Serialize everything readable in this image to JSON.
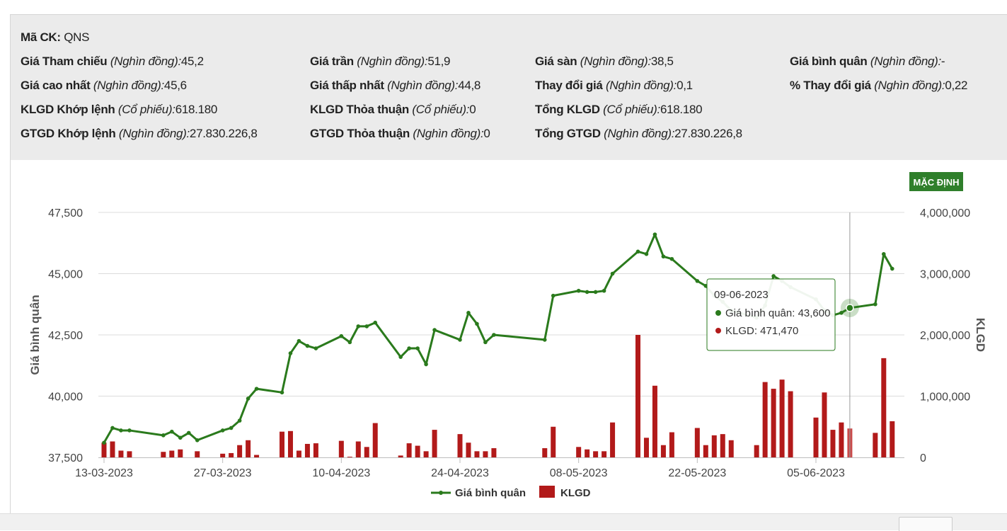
{
  "info": {
    "symbol_label": "Mã CK:",
    "symbol_value": "QNS",
    "rows": [
      [
        {
          "label": "Giá Tham chiếu",
          "unit": "(Nghìn đồng):",
          "value": "45,2"
        },
        {
          "label": "Giá trần",
          "unit": "(Nghìn đồng):",
          "value": "51,9"
        },
        {
          "label": "Giá sàn",
          "unit": "(Nghìn đồng):",
          "value": "38,5"
        },
        {
          "label": "Giá bình quân",
          "unit": "(Nghìn đồng):",
          "value": "-"
        }
      ],
      [
        {
          "label": "Giá cao nhất",
          "unit": "(Nghìn đồng):",
          "value": "45,6"
        },
        {
          "label": "Giá thấp nhất",
          "unit": "(Nghìn đồng):",
          "value": "44,8"
        },
        {
          "label": "Thay đổi giá",
          "unit": "(Nghìn đồng):",
          "value": "0,1"
        },
        {
          "label": "% Thay đổi giá",
          "unit": "(Nghìn đồng):",
          "value": "0,22"
        }
      ],
      [
        {
          "label": "KLGD Khớp lệnh",
          "unit": "(Cổ phiếu):",
          "value": "618.180"
        },
        {
          "label": "KLGD Thỏa thuận",
          "unit": "(Cổ phiếu):",
          "value": "0"
        },
        {
          "label": "Tổng KLGD",
          "unit": "(Cổ phiếu):",
          "value": "618.180"
        }
      ],
      [
        {
          "label": "GTGD Khớp lệnh",
          "unit": "(Nghìn đồng):",
          "value": "27.830.226,8"
        },
        {
          "label": "GTGD Thỏa thuận",
          "unit": "(Nghìn đồng):",
          "value": "0"
        },
        {
          "label": "Tổng GTGD",
          "unit": "(Nghìn đồng):",
          "value": "27.830.226,8"
        }
      ]
    ]
  },
  "button": {
    "label": "MẶC ĐỊNH"
  },
  "chart_data": {
    "type": "line",
    "x_ticks": [
      "13-03-2023",
      "27-03-2023",
      "10-04-2023",
      "24-04-2023",
      "08-05-2023",
      "22-05-2023",
      "05-06-2023"
    ],
    "y_left_ticks": [
      "37,500",
      "40,000",
      "42,500",
      "45,000",
      "47,500"
    ],
    "y_right_ticks": [
      "0",
      "1,000,000",
      "2,000,000",
      "3,000,000",
      "4,000,000"
    ],
    "ylabel": "Giá bình quân",
    "ylabel_right": "KLGD",
    "ylim": [
      37500,
      47500
    ],
    "ylim_right": [
      0,
      4000000
    ],
    "legend_position": "bottom",
    "grid": true,
    "series": [
      {
        "name": "Giá bình quân",
        "type": "line",
        "color": "#2a7a1c",
        "points": [
          [
            "2023-03-13",
            38100
          ],
          [
            "2023-03-14",
            38700
          ],
          [
            "2023-03-15",
            38600
          ],
          [
            "2023-03-16",
            38600
          ],
          [
            "2023-03-20",
            38400
          ],
          [
            "2023-03-21",
            38550
          ],
          [
            "2023-03-22",
            38300
          ],
          [
            "2023-03-23",
            38500
          ],
          [
            "2023-03-24",
            38200
          ],
          [
            "2023-03-27",
            38600
          ],
          [
            "2023-03-28",
            38700
          ],
          [
            "2023-03-29",
            39000
          ],
          [
            "2023-03-30",
            39900
          ],
          [
            "2023-03-31",
            40300
          ],
          [
            "2023-04-03",
            40150
          ],
          [
            "2023-04-04",
            41750
          ],
          [
            "2023-04-05",
            42250
          ],
          [
            "2023-04-06",
            42050
          ],
          [
            "2023-04-07",
            41950
          ],
          [
            "2023-04-10",
            42450
          ],
          [
            "2023-04-11",
            42200
          ],
          [
            "2023-04-12",
            42850
          ],
          [
            "2023-04-13",
            42850
          ],
          [
            "2023-04-14",
            43000
          ],
          [
            "2023-04-17",
            41600
          ],
          [
            "2023-04-18",
            41950
          ],
          [
            "2023-04-19",
            41950
          ],
          [
            "2023-04-20",
            41300
          ],
          [
            "2023-04-21",
            42700
          ],
          [
            "2023-04-24",
            42300
          ],
          [
            "2023-04-25",
            43400
          ],
          [
            "2023-04-26",
            42950
          ],
          [
            "2023-04-27",
            42200
          ],
          [
            "2023-04-28",
            42500
          ],
          [
            "2023-05-04",
            42300
          ],
          [
            "2023-05-05",
            44100
          ],
          [
            "2023-05-08",
            44300
          ],
          [
            "2023-05-09",
            44250
          ],
          [
            "2023-05-10",
            44250
          ],
          [
            "2023-05-11",
            44300
          ],
          [
            "2023-05-12",
            45000
          ],
          [
            "2023-05-15",
            45900
          ],
          [
            "2023-05-16",
            45800
          ],
          [
            "2023-05-17",
            46600
          ],
          [
            "2023-05-18",
            45700
          ],
          [
            "2023-05-19",
            45600
          ],
          [
            "2023-05-22",
            44700
          ],
          [
            "2023-05-23",
            44500
          ],
          [
            "2023-05-24",
            44100
          ],
          [
            "2023-05-25",
            43850
          ],
          [
            "2023-05-26",
            43500
          ],
          [
            "2023-05-29",
            43200
          ],
          [
            "2023-05-30",
            43700
          ],
          [
            "2023-05-31",
            44900
          ],
          [
            "2023-06-01",
            44700
          ],
          [
            "2023-06-02",
            44450
          ],
          [
            "2023-06-05",
            43950
          ],
          [
            "2023-06-06",
            43500
          ],
          [
            "2023-06-07",
            43300
          ],
          [
            "2023-06-08",
            43400
          ],
          [
            "2023-06-09",
            43600
          ],
          [
            "2023-06-12",
            43750
          ],
          [
            "2023-06-13",
            45800
          ],
          [
            "2023-06-14",
            45200
          ]
        ]
      },
      {
        "name": "KLGD",
        "type": "bar",
        "color": "#b21a1a",
        "points": [
          [
            "2023-03-13",
            240000
          ],
          [
            "2023-03-14",
            260000
          ],
          [
            "2023-03-15",
            110000
          ],
          [
            "2023-03-16",
            100000
          ],
          [
            "2023-03-20",
            90000
          ],
          [
            "2023-03-21",
            110000
          ],
          [
            "2023-03-22",
            130000
          ],
          [
            "2023-03-23",
            0
          ],
          [
            "2023-03-24",
            100000
          ],
          [
            "2023-03-27",
            60000
          ],
          [
            "2023-03-28",
            70000
          ],
          [
            "2023-03-29",
            200000
          ],
          [
            "2023-03-30",
            280000
          ],
          [
            "2023-03-31",
            40000
          ],
          [
            "2023-04-03",
            420000
          ],
          [
            "2023-04-04",
            430000
          ],
          [
            "2023-04-05",
            110000
          ],
          [
            "2023-04-06",
            220000
          ],
          [
            "2023-04-07",
            230000
          ],
          [
            "2023-04-10",
            270000
          ],
          [
            "2023-04-11",
            10000
          ],
          [
            "2023-04-12",
            260000
          ],
          [
            "2023-04-13",
            170000
          ],
          [
            "2023-04-14",
            560000
          ],
          [
            "2023-04-17",
            30000
          ],
          [
            "2023-04-18",
            230000
          ],
          [
            "2023-04-19",
            190000
          ],
          [
            "2023-04-20",
            100000
          ],
          [
            "2023-04-21",
            450000
          ],
          [
            "2023-04-24",
            380000
          ],
          [
            "2023-04-25",
            240000
          ],
          [
            "2023-04-26",
            100000
          ],
          [
            "2023-04-27",
            100000
          ],
          [
            "2023-04-28",
            150000
          ],
          [
            "2023-05-04",
            150000
          ],
          [
            "2023-05-05",
            500000
          ],
          [
            "2023-05-08",
            170000
          ],
          [
            "2023-05-09",
            130000
          ],
          [
            "2023-05-10",
            100000
          ],
          [
            "2023-05-11",
            100000
          ],
          [
            "2023-05-12",
            570000
          ],
          [
            "2023-05-15",
            2000000
          ],
          [
            "2023-05-16",
            320000
          ],
          [
            "2023-05-17",
            1170000
          ],
          [
            "2023-05-18",
            200000
          ],
          [
            "2023-05-19",
            410000
          ],
          [
            "2023-05-22",
            480000
          ],
          [
            "2023-05-23",
            200000
          ],
          [
            "2023-05-24",
            360000
          ],
          [
            "2023-05-25",
            380000
          ],
          [
            "2023-05-26",
            280000
          ],
          [
            "2023-05-29",
            200000
          ],
          [
            "2023-05-30",
            1230000
          ],
          [
            "2023-05-31",
            1120000
          ],
          [
            "2023-06-01",
            1270000
          ],
          [
            "2023-06-02",
            1080000
          ],
          [
            "2023-06-05",
            650000
          ],
          [
            "2023-06-06",
            1060000
          ],
          [
            "2023-06-07",
            450000
          ],
          [
            "2023-06-08",
            570000
          ],
          [
            "2023-06-09",
            471470
          ],
          [
            "2023-06-12",
            400000
          ],
          [
            "2023-06-13",
            1620000
          ],
          [
            "2023-06-14",
            590000
          ]
        ]
      }
    ],
    "tooltip": {
      "date": "09-06-2023",
      "price_label": "Giá bình quân:",
      "price_value": "43,600",
      "volume_label": "KLGD:",
      "volume_value": "471,470"
    }
  }
}
